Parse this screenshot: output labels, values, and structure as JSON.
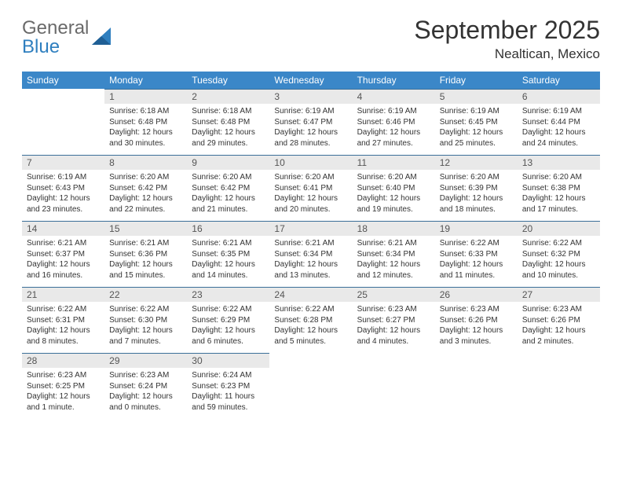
{
  "brand": {
    "part1": "General",
    "part2": "Blue"
  },
  "title": "September 2025",
  "location": "Nealtican, Mexico",
  "colors": {
    "header_bg": "#3b87c8",
    "header_text": "#ffffff",
    "daynum_bg": "#e9e9e9",
    "daynum_text": "#555555",
    "cell_border": "#3b6f99",
    "page_bg": "#ffffff",
    "body_text": "#333333",
    "brand_gray": "#6a6a6a",
    "brand_blue": "#2f7fbf"
  },
  "day_headers": [
    "Sunday",
    "Monday",
    "Tuesday",
    "Wednesday",
    "Thursday",
    "Friday",
    "Saturday"
  ],
  "weeks": [
    [
      null,
      {
        "n": "1",
        "sr": "Sunrise: 6:18 AM",
        "ss": "Sunset: 6:48 PM",
        "dl1": "Daylight: 12 hours",
        "dl2": "and 30 minutes."
      },
      {
        "n": "2",
        "sr": "Sunrise: 6:18 AM",
        "ss": "Sunset: 6:48 PM",
        "dl1": "Daylight: 12 hours",
        "dl2": "and 29 minutes."
      },
      {
        "n": "3",
        "sr": "Sunrise: 6:19 AM",
        "ss": "Sunset: 6:47 PM",
        "dl1": "Daylight: 12 hours",
        "dl2": "and 28 minutes."
      },
      {
        "n": "4",
        "sr": "Sunrise: 6:19 AM",
        "ss": "Sunset: 6:46 PM",
        "dl1": "Daylight: 12 hours",
        "dl2": "and 27 minutes."
      },
      {
        "n": "5",
        "sr": "Sunrise: 6:19 AM",
        "ss": "Sunset: 6:45 PM",
        "dl1": "Daylight: 12 hours",
        "dl2": "and 25 minutes."
      },
      {
        "n": "6",
        "sr": "Sunrise: 6:19 AM",
        "ss": "Sunset: 6:44 PM",
        "dl1": "Daylight: 12 hours",
        "dl2": "and 24 minutes."
      }
    ],
    [
      {
        "n": "7",
        "sr": "Sunrise: 6:19 AM",
        "ss": "Sunset: 6:43 PM",
        "dl1": "Daylight: 12 hours",
        "dl2": "and 23 minutes."
      },
      {
        "n": "8",
        "sr": "Sunrise: 6:20 AM",
        "ss": "Sunset: 6:42 PM",
        "dl1": "Daylight: 12 hours",
        "dl2": "and 22 minutes."
      },
      {
        "n": "9",
        "sr": "Sunrise: 6:20 AM",
        "ss": "Sunset: 6:42 PM",
        "dl1": "Daylight: 12 hours",
        "dl2": "and 21 minutes."
      },
      {
        "n": "10",
        "sr": "Sunrise: 6:20 AM",
        "ss": "Sunset: 6:41 PM",
        "dl1": "Daylight: 12 hours",
        "dl2": "and 20 minutes."
      },
      {
        "n": "11",
        "sr": "Sunrise: 6:20 AM",
        "ss": "Sunset: 6:40 PM",
        "dl1": "Daylight: 12 hours",
        "dl2": "and 19 minutes."
      },
      {
        "n": "12",
        "sr": "Sunrise: 6:20 AM",
        "ss": "Sunset: 6:39 PM",
        "dl1": "Daylight: 12 hours",
        "dl2": "and 18 minutes."
      },
      {
        "n": "13",
        "sr": "Sunrise: 6:20 AM",
        "ss": "Sunset: 6:38 PM",
        "dl1": "Daylight: 12 hours",
        "dl2": "and 17 minutes."
      }
    ],
    [
      {
        "n": "14",
        "sr": "Sunrise: 6:21 AM",
        "ss": "Sunset: 6:37 PM",
        "dl1": "Daylight: 12 hours",
        "dl2": "and 16 minutes."
      },
      {
        "n": "15",
        "sr": "Sunrise: 6:21 AM",
        "ss": "Sunset: 6:36 PM",
        "dl1": "Daylight: 12 hours",
        "dl2": "and 15 minutes."
      },
      {
        "n": "16",
        "sr": "Sunrise: 6:21 AM",
        "ss": "Sunset: 6:35 PM",
        "dl1": "Daylight: 12 hours",
        "dl2": "and 14 minutes."
      },
      {
        "n": "17",
        "sr": "Sunrise: 6:21 AM",
        "ss": "Sunset: 6:34 PM",
        "dl1": "Daylight: 12 hours",
        "dl2": "and 13 minutes."
      },
      {
        "n": "18",
        "sr": "Sunrise: 6:21 AM",
        "ss": "Sunset: 6:34 PM",
        "dl1": "Daylight: 12 hours",
        "dl2": "and 12 minutes."
      },
      {
        "n": "19",
        "sr": "Sunrise: 6:22 AM",
        "ss": "Sunset: 6:33 PM",
        "dl1": "Daylight: 12 hours",
        "dl2": "and 11 minutes."
      },
      {
        "n": "20",
        "sr": "Sunrise: 6:22 AM",
        "ss": "Sunset: 6:32 PM",
        "dl1": "Daylight: 12 hours",
        "dl2": "and 10 minutes."
      }
    ],
    [
      {
        "n": "21",
        "sr": "Sunrise: 6:22 AM",
        "ss": "Sunset: 6:31 PM",
        "dl1": "Daylight: 12 hours",
        "dl2": "and 8 minutes."
      },
      {
        "n": "22",
        "sr": "Sunrise: 6:22 AM",
        "ss": "Sunset: 6:30 PM",
        "dl1": "Daylight: 12 hours",
        "dl2": "and 7 minutes."
      },
      {
        "n": "23",
        "sr": "Sunrise: 6:22 AM",
        "ss": "Sunset: 6:29 PM",
        "dl1": "Daylight: 12 hours",
        "dl2": "and 6 minutes."
      },
      {
        "n": "24",
        "sr": "Sunrise: 6:22 AM",
        "ss": "Sunset: 6:28 PM",
        "dl1": "Daylight: 12 hours",
        "dl2": "and 5 minutes."
      },
      {
        "n": "25",
        "sr": "Sunrise: 6:23 AM",
        "ss": "Sunset: 6:27 PM",
        "dl1": "Daylight: 12 hours",
        "dl2": "and 4 minutes."
      },
      {
        "n": "26",
        "sr": "Sunrise: 6:23 AM",
        "ss": "Sunset: 6:26 PM",
        "dl1": "Daylight: 12 hours",
        "dl2": "and 3 minutes."
      },
      {
        "n": "27",
        "sr": "Sunrise: 6:23 AM",
        "ss": "Sunset: 6:26 PM",
        "dl1": "Daylight: 12 hours",
        "dl2": "and 2 minutes."
      }
    ],
    [
      {
        "n": "28",
        "sr": "Sunrise: 6:23 AM",
        "ss": "Sunset: 6:25 PM",
        "dl1": "Daylight: 12 hours",
        "dl2": "and 1 minute."
      },
      {
        "n": "29",
        "sr": "Sunrise: 6:23 AM",
        "ss": "Sunset: 6:24 PM",
        "dl1": "Daylight: 12 hours",
        "dl2": "and 0 minutes."
      },
      {
        "n": "30",
        "sr": "Sunrise: 6:24 AM",
        "ss": "Sunset: 6:23 PM",
        "dl1": "Daylight: 11 hours",
        "dl2": "and 59 minutes."
      },
      null,
      null,
      null,
      null
    ]
  ]
}
